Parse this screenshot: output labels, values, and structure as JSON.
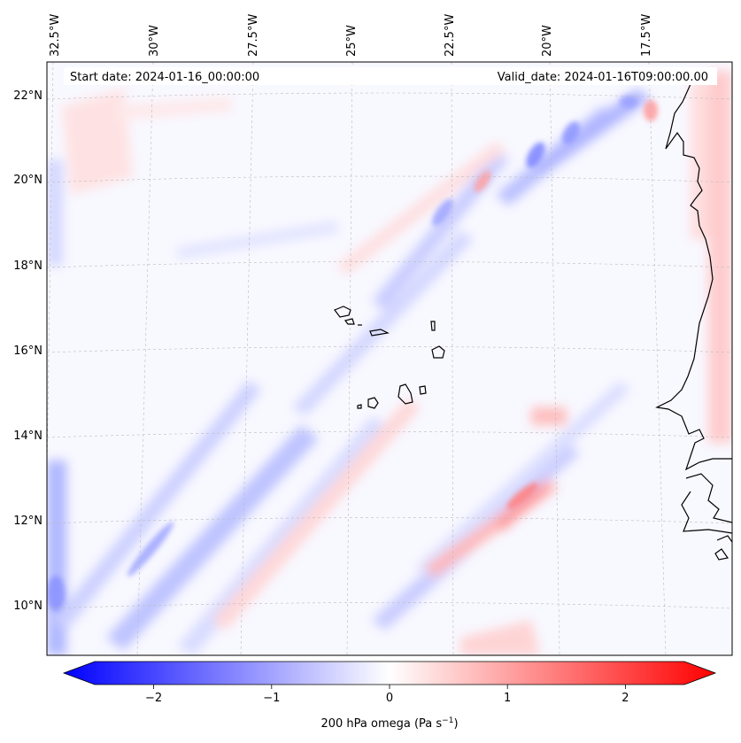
{
  "map": {
    "start_date_text": "Start date: 2024-01-16_00:00:00",
    "valid_date_text": "Valid_date: 2024-01-16T09:00:00.00",
    "field": "200 hPa omega",
    "lon_labels": [
      "32.5°W",
      "30°W",
      "27.5°W",
      "25°W",
      "22.5°W",
      "20°W",
      "17.5°W"
    ],
    "lat_labels": [
      "22°N",
      "20°N",
      "18°N",
      "16°N",
      "14°N",
      "12°N",
      "10°N"
    ],
    "colors": {
      "neg": "#0000ff",
      "zero": "#f8f8ff",
      "pos": "#ff0000",
      "coast": "#000000",
      "grid": "#bbbbbb"
    }
  },
  "colorbar": {
    "label_main": "200 hPa omega (Pa s",
    "label_exp": "−1",
    "label_close": ")",
    "ticks": [
      "−2",
      "−1",
      "0",
      "1",
      "2"
    ],
    "tick_values": [
      -2,
      -1,
      0,
      1,
      2
    ],
    "range": [
      -2.6,
      2.6
    ]
  }
}
